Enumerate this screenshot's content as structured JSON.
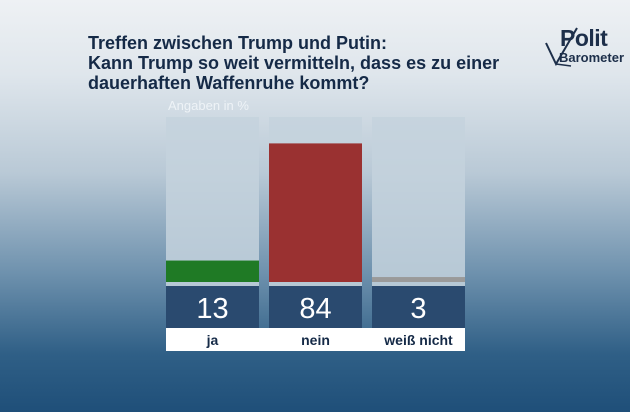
{
  "title_lines": [
    "Treffen zwischen Trump und Putin:",
    "Kann Trump so weit vermitteln, dass es zu einer",
    "dauerhaften Waffenruhe kommt?"
  ],
  "logo": {
    "word1": "Polit",
    "word2": "Barometer"
  },
  "unit_label": "Angaben in %",
  "chart_data": {
    "type": "bar",
    "title": "Treffen zwischen Trump und Putin: Kann Trump so weit vermitteln, dass es zu einer dauerhaften Waffenruhe kommt?",
    "unit": "Angaben in %",
    "categories": [
      "ja",
      "nein",
      "weiß nicht"
    ],
    "values": [
      13,
      84,
      3
    ],
    "colors": [
      "#1f7a25",
      "#9a3131",
      "#9a9a9a"
    ],
    "ylim": [
      0,
      100
    ],
    "grid": false,
    "legend": "none"
  }
}
